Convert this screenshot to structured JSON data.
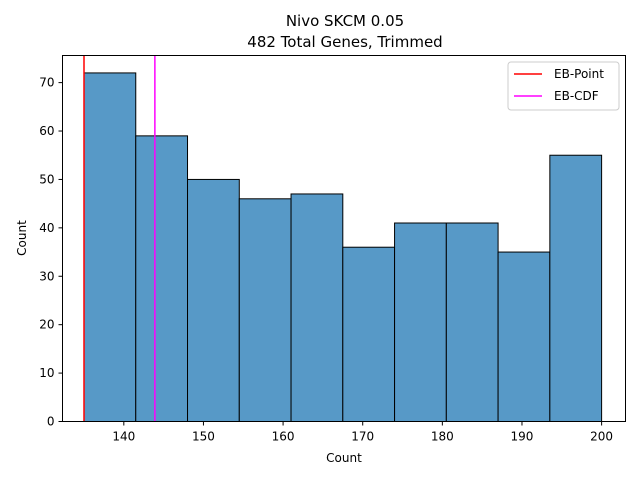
{
  "chart_data": {
    "type": "bar",
    "title": "Nivo SKCM 0.05",
    "subtitle": "482 Total Genes, Trimmed",
    "xlabel": "Count",
    "ylabel": "Count",
    "xlim": [
      132.3,
      203.0
    ],
    "ylim": [
      0,
      75.6
    ],
    "x_ticks": [
      140,
      150,
      160,
      170,
      180,
      190,
      200
    ],
    "y_ticks": [
      0,
      10,
      20,
      30,
      40,
      50,
      60,
      70
    ],
    "bins": [
      {
        "start": 135.0,
        "end": 141.5,
        "value": 72
      },
      {
        "start": 141.5,
        "end": 148.0,
        "value": 59
      },
      {
        "start": 148.0,
        "end": 154.5,
        "value": 50
      },
      {
        "start": 154.5,
        "end": 161.0,
        "value": 46
      },
      {
        "start": 161.0,
        "end": 167.5,
        "value": 47
      },
      {
        "start": 167.5,
        "end": 174.0,
        "value": 36
      },
      {
        "start": 174.0,
        "end": 180.5,
        "value": 41
      },
      {
        "start": 180.5,
        "end": 187.0,
        "value": 41
      },
      {
        "start": 187.0,
        "end": 193.5,
        "value": 35
      },
      {
        "start": 193.5,
        "end": 200.0,
        "value": 55
      }
    ],
    "bar_color": "#5799c7",
    "vlines": [
      {
        "name": "EB-Point",
        "x": 135.0,
        "color": "#ff0000"
      },
      {
        "name": "EB-CDF",
        "x": 143.9,
        "color": "#ff00ff"
      }
    ],
    "legend_position": "top-right",
    "grid": false
  }
}
